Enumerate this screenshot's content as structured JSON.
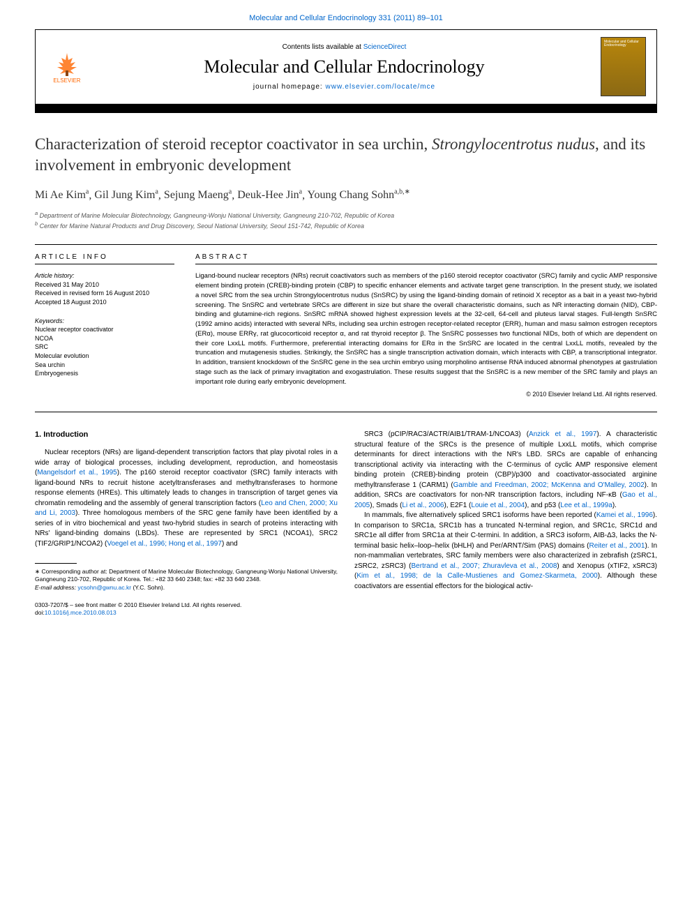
{
  "journal_ref": "Molecular and Cellular Endocrinology 331 (2011) 89–101",
  "header": {
    "contents_prefix": "Contents lists available at ",
    "contents_link": "ScienceDirect",
    "journal_title": "Molecular and Cellular Endocrinology",
    "homepage_prefix": "journal homepage: ",
    "homepage_link": "www.elsevier.com/locate/mce",
    "elsevier_label": "ELSEVIER"
  },
  "article": {
    "title_pre": "Characterization of steroid receptor coactivator in sea urchin, ",
    "title_species": "Strongylocentrotus nudus",
    "title_post": ", and its involvement in embryonic development",
    "authors_html": "Mi Ae Kim",
    "author_list": [
      {
        "name": "Mi Ae Kim",
        "sup": "a"
      },
      {
        "name": "Gil Jung Kim",
        "sup": "a"
      },
      {
        "name": "Sejung Maeng",
        "sup": "a"
      },
      {
        "name": "Deuk-Hee Jin",
        "sup": "a"
      },
      {
        "name": "Young Chang Sohn",
        "sup": "a,b,∗"
      }
    ],
    "affiliations": [
      {
        "sup": "a",
        "text": "Department of Marine Molecular Biotechnology, Gangneung-Wonju National University, Gangneung 210-702, Republic of Korea"
      },
      {
        "sup": "b",
        "text": "Center for Marine Natural Products and Drug Discovery, Seoul National University, Seoul 151-742, Republic of Korea"
      }
    ]
  },
  "info": {
    "section_label": "article info",
    "history_label": "Article history:",
    "history": [
      "Received 31 May 2010",
      "Received in revised form 16 August 2010",
      "Accepted 18 August 2010"
    ],
    "keywords_label": "Keywords:",
    "keywords": [
      "Nuclear receptor coactivator",
      "NCOA",
      "SRC",
      "Molecular evolution",
      "Sea urchin",
      "Embryogenesis"
    ]
  },
  "abstract": {
    "section_label": "abstract",
    "text": "Ligand-bound nuclear receptors (NRs) recruit coactivators such as members of the p160 steroid receptor coactivator (SRC) family and cyclic AMP responsive element binding protein (CREB)-binding protein (CBP) to specific enhancer elements and activate target gene transcription. In the present study, we isolated a novel SRC from the sea urchin Strongylocentrotus nudus (SnSRC) by using the ligand-binding domain of retinoid X receptor as a bait in a yeast two-hybrid screening. The SnSRC and vertebrate SRCs are different in size but share the overall characteristic domains, such as NR interacting domain (NID), CBP-binding and glutamine-rich regions. SnSRC mRNA showed highest expression levels at the 32-cell, 64-cell and pluteus larval stages. Full-length SnSRC (1992 amino acids) interacted with several NRs, including sea urchin estrogen receptor-related receptor (ERR), human and masu salmon estrogen receptors (ERα), mouse ERRγ, rat glucocorticoid receptor α, and rat thyroid receptor β. The SnSRC possesses two functional NIDs, both of which are dependent on their core LxxLL motifs. Furthermore, preferential interacting domains for ERα in the SnSRC are located in the central LxxLL motifs, revealed by the truncation and mutagenesis studies. Strikingly, the SnSRC has a single transcription activation domain, which interacts with CBP, a transcriptional integrator. In addition, transient knockdown of the SnSRC gene in the sea urchin embryo using morpholino antisense RNA induced abnormal phenotypes at gastrulation stage such as the lack of primary invagitation and exogastrulation. These results suggest that the SnSRC is a new member of the SRC family and plays an important role during early embryonic development.",
    "copyright": "© 2010 Elsevier Ireland Ltd. All rights reserved."
  },
  "body": {
    "section_heading": "1. Introduction",
    "col1_paras": [
      "Nuclear receptors (NRs) are ligand-dependent transcription factors that play pivotal roles in a wide array of biological processes, including development, reproduction, and homeostasis (Mangelsdorf et al., 1995). The p160 steroid receptor coactivator (SRC) family interacts with ligand-bound NRs to recruit histone acetyltransferases and methyltransferases to hormone response elements (HREs). This ultimately leads to changes in transcription of target genes via chromatin remodeling and the assembly of general transcription factors (Leo and Chen, 2000; Xu and Li, 2003). Three homologous members of the SRC gene family have been identified by a series of in vitro biochemical and yeast two-hybrid studies in search of proteins interacting with NRs' ligand-binding domains (LBDs). These are represented by SRC1 (NCOA1), SRC2 (TIF2/GRIP1/NCOA2) (Voegel et al., 1996; Hong et al., 1997) and"
    ],
    "col2_paras": [
      "SRC3 (pCIP/RAC3/ACTR/AIB1/TRAM-1/NCOA3) (Anzick et al., 1997). A characteristic structural feature of the SRCs is the presence of multiple LxxLL motifs, which comprise determinants for direct interactions with the NR's LBD. SRCs are capable of enhancing transcriptional activity via interacting with the C-terminus of cyclic AMP responsive element binding protein (CREB)-binding protein (CBP)/p300 and coactivator-associated arginine methyltransferase 1 (CARM1) (Gamble and Freedman, 2002; McKenna and O'Malley, 2002). In addition, SRCs are coactivators for non-NR transcription factors, including NF-κB (Gao et al., 2005), Smads (Li et al., 2006), E2F1 (Louie et al., 2004), and p53 (Lee et al., 1999a).",
      "In mammals, five alternatively spliced SRC1 isoforms have been reported (Kamei et al., 1996). In comparison to SRC1a, SRC1b has a truncated N-terminal region, and SRC1c, SRC1d and SRC1e all differ from SRC1a at their C-termini. In addition, a SRC3 isoform, AIB-Δ3, lacks the N-terminal basic helix–loop–helix (bHLH) and Per/ARNT/Sim (PAS) domains (Reiter et al., 2001). In non-mammalian vertebrates, SRC family members were also characterized in zebrafish (zSRC1, zSRC2, zSRC3) (Bertrand et al., 2007; Zhuravleva et al., 2008) and Xenopus (xTIF2, xSRC3) (Kim et al., 1998; de la Calle-Mustienes and Gomez-Skarmeta, 2000). Although these coactivators are essential effectors for the biological activ-"
    ]
  },
  "footnote": {
    "corr": "∗ Corresponding author at: Department of Marine Molecular Biotechnology, Gangneung-Wonju National University, Gangneung 210-702, Republic of Korea. Tel.: +82 33 640 2348; fax: +82 33 640 2348.",
    "email_label": "E-mail address: ",
    "email": "ycsohn@gwnu.ac.kr",
    "email_suffix": " (Y.C. Sohn)."
  },
  "footer": {
    "line1": "0303-7207/$ – see front matter © 2010 Elsevier Ireland Ltd. All rights reserved.",
    "doi_label": "doi:",
    "doi": "10.1016/j.mce.2010.08.013"
  },
  "colors": {
    "link": "#0066cc",
    "text": "#000000",
    "elsevier_orange": "#ff6600"
  }
}
